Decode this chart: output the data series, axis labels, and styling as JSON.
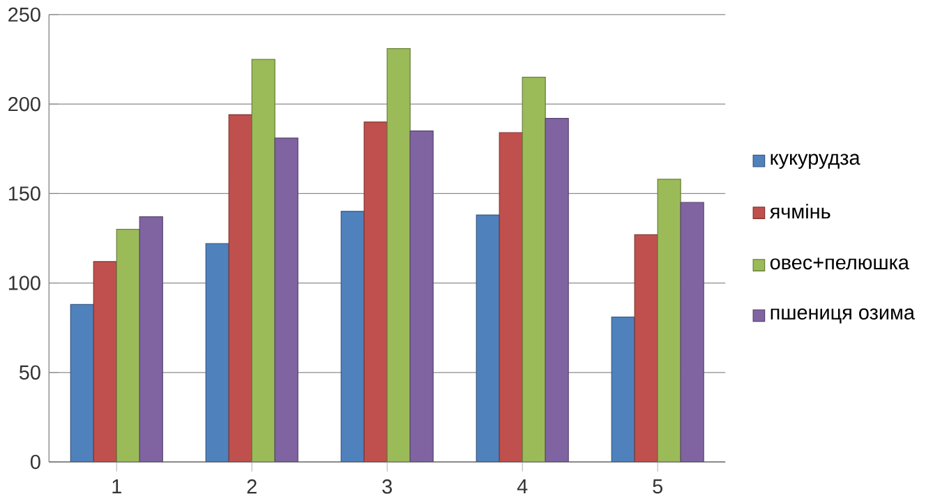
{
  "chart_data": {
    "type": "bar",
    "categories": [
      "1",
      "2",
      "3",
      "4",
      "5"
    ],
    "series": [
      {
        "name": "кукурудза",
        "color": "#4f81bd",
        "values": [
          88,
          122,
          140,
          138,
          81
        ]
      },
      {
        "name": "ячмінь",
        "color": "#c0504d",
        "values": [
          112,
          194,
          190,
          184,
          127
        ]
      },
      {
        "name": "овес+пелюшка",
        "color": "#9bbb59",
        "values": [
          130,
          225,
          231,
          215,
          158
        ]
      },
      {
        "name": "пшениця озима",
        "color": "#8064a2",
        "values": [
          137,
          181,
          185,
          192,
          145
        ]
      }
    ],
    "ylim": [
      0,
      250
    ],
    "yticks": [
      0,
      50,
      100,
      150,
      200,
      250
    ],
    "grid": "y",
    "legend": "right"
  }
}
